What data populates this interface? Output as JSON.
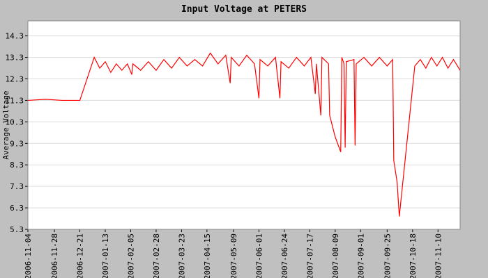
{
  "chart_data": {
    "type": "line",
    "title": "Input Voltage at PETERS",
    "y_label": "Average Voltage",
    "x": [
      "2006-11-04",
      "2006-11-20",
      "2006-12-05",
      "2006-12-21",
      "2007-01-03",
      "2007-01-08",
      "2007-01-13",
      "2007-01-18",
      "2007-01-23",
      "2007-01-28",
      "2007-02-02",
      "2007-02-06",
      "2007-02-07",
      "2007-02-14",
      "2007-02-21",
      "2007-02-28",
      "2007-03-07",
      "2007-03-14",
      "2007-03-21",
      "2007-03-28",
      "2007-04-04",
      "2007-04-11",
      "2007-04-18",
      "2007-04-25",
      "2007-05-02",
      "2007-05-06",
      "2007-05-07",
      "2007-05-14",
      "2007-05-21",
      "2007-05-28",
      "2007-06-01",
      "2007-06-02",
      "2007-06-09",
      "2007-06-16",
      "2007-06-20",
      "2007-06-21",
      "2007-06-28",
      "2007-07-05",
      "2007-07-12",
      "2007-07-18",
      "2007-07-22",
      "2007-07-23",
      "2007-07-27",
      "2007-07-28",
      "2007-08-03",
      "2007-08-04",
      "2007-08-09",
      "2007-08-14",
      "2007-08-15",
      "2007-08-17",
      "2007-08-18",
      "2007-08-19",
      "2007-08-26",
      "2007-08-27",
      "2007-08-28",
      "2007-09-04",
      "2007-09-11",
      "2007-09-18",
      "2007-09-25",
      "2007-09-30",
      "2007-10-01",
      "2007-10-04",
      "2007-10-06",
      "2007-10-20",
      "2007-10-25",
      "2007-10-30",
      "2007-11-04",
      "2007-11-09",
      "2007-11-14",
      "2007-11-19",
      "2007-11-24",
      "2007-11-30"
    ],
    "series": [
      {
        "name": "Average Voltage",
        "color": "#ff0000",
        "values": [
          11.3,
          11.35,
          11.3,
          11.3,
          13.3,
          12.8,
          13.1,
          12.6,
          13.0,
          12.7,
          13.0,
          12.5,
          13.0,
          12.7,
          13.1,
          12.7,
          13.2,
          12.8,
          13.3,
          12.9,
          13.2,
          12.9,
          13.5,
          13.0,
          13.4,
          12.1,
          13.3,
          12.9,
          13.4,
          13.0,
          11.4,
          13.2,
          12.9,
          13.3,
          11.4,
          13.1,
          12.8,
          13.3,
          12.9,
          13.3,
          11.6,
          13.0,
          10.6,
          13.3,
          13.0,
          10.6,
          9.6,
          8.9,
          13.3,
          13.0,
          9.1,
          13.1,
          13.2,
          9.2,
          13.0,
          13.3,
          12.9,
          13.3,
          12.9,
          13.2,
          8.5,
          7.5,
          5.9,
          12.9,
          13.2,
          12.8,
          13.3,
          12.9,
          13.3,
          12.8,
          13.2,
          12.7
        ]
      }
    ],
    "xlim": [
      "2006-11-04",
      "2007-11-30"
    ],
    "xticks": [
      "2006-11-04",
      "2006-11-28",
      "2006-12-21",
      "2007-01-13",
      "2007-02-05",
      "2007-02-28",
      "2007-03-23",
      "2007-04-15",
      "2007-05-09",
      "2007-06-01",
      "2007-06-24",
      "2007-07-17",
      "2007-08-09",
      "2007-09-01",
      "2007-09-25",
      "2007-10-18",
      "2007-11-10"
    ],
    "ylim": [
      5.3,
      15.0
    ],
    "yticks": [
      5.3,
      6.3,
      7.3,
      8.3,
      9.3,
      10.3,
      11.3,
      12.3,
      13.3,
      14.3
    ],
    "grid": true
  }
}
